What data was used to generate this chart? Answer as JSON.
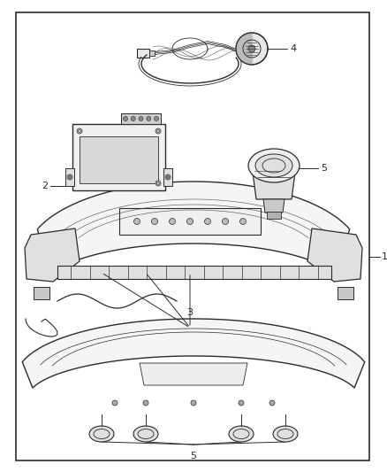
{
  "background_color": "#ffffff",
  "border_color": "#2b2b2b",
  "line_color": "#2b2b2b",
  "text_color": "#2b2b2b",
  "fig_width": 4.38,
  "fig_height": 5.33,
  "dpi": 100
}
